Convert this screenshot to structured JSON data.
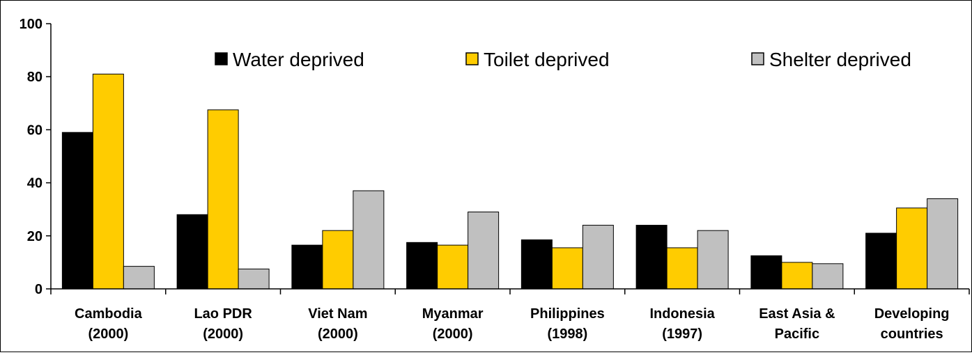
{
  "chart_data": {
    "type": "bar",
    "title": "",
    "xlabel": "",
    "ylabel": "",
    "ylim": [
      0,
      100
    ],
    "yticks": [
      0,
      20,
      40,
      60,
      80,
      100
    ],
    "categories": [
      [
        "Cambodia",
        "(2000)"
      ],
      [
        "Lao PDR",
        "(2000)"
      ],
      [
        "Viet Nam",
        "(2000)"
      ],
      [
        "Myanmar",
        "(2000)"
      ],
      [
        "Philippines",
        "(1998)"
      ],
      [
        "Indonesia",
        "(1997)"
      ],
      [
        "East Asia &",
        "Pacific"
      ],
      [
        "Developing",
        "countries"
      ]
    ],
    "series": [
      {
        "name": "Water deprived",
        "color": "#000000",
        "values": [
          59,
          28,
          16.5,
          17.5,
          18.5,
          24,
          12.5,
          21
        ]
      },
      {
        "name": "Toilet deprived",
        "color": "#ffcc00",
        "values": [
          81,
          67.5,
          22,
          16.5,
          15.5,
          15.5,
          10,
          30.5
        ]
      },
      {
        "name": "Shelter deprived",
        "color": "#c0c0c0",
        "values": [
          8.5,
          7.5,
          37,
          29,
          24,
          22,
          9.5,
          34
        ]
      }
    ],
    "grid": false,
    "legend": "top"
  }
}
